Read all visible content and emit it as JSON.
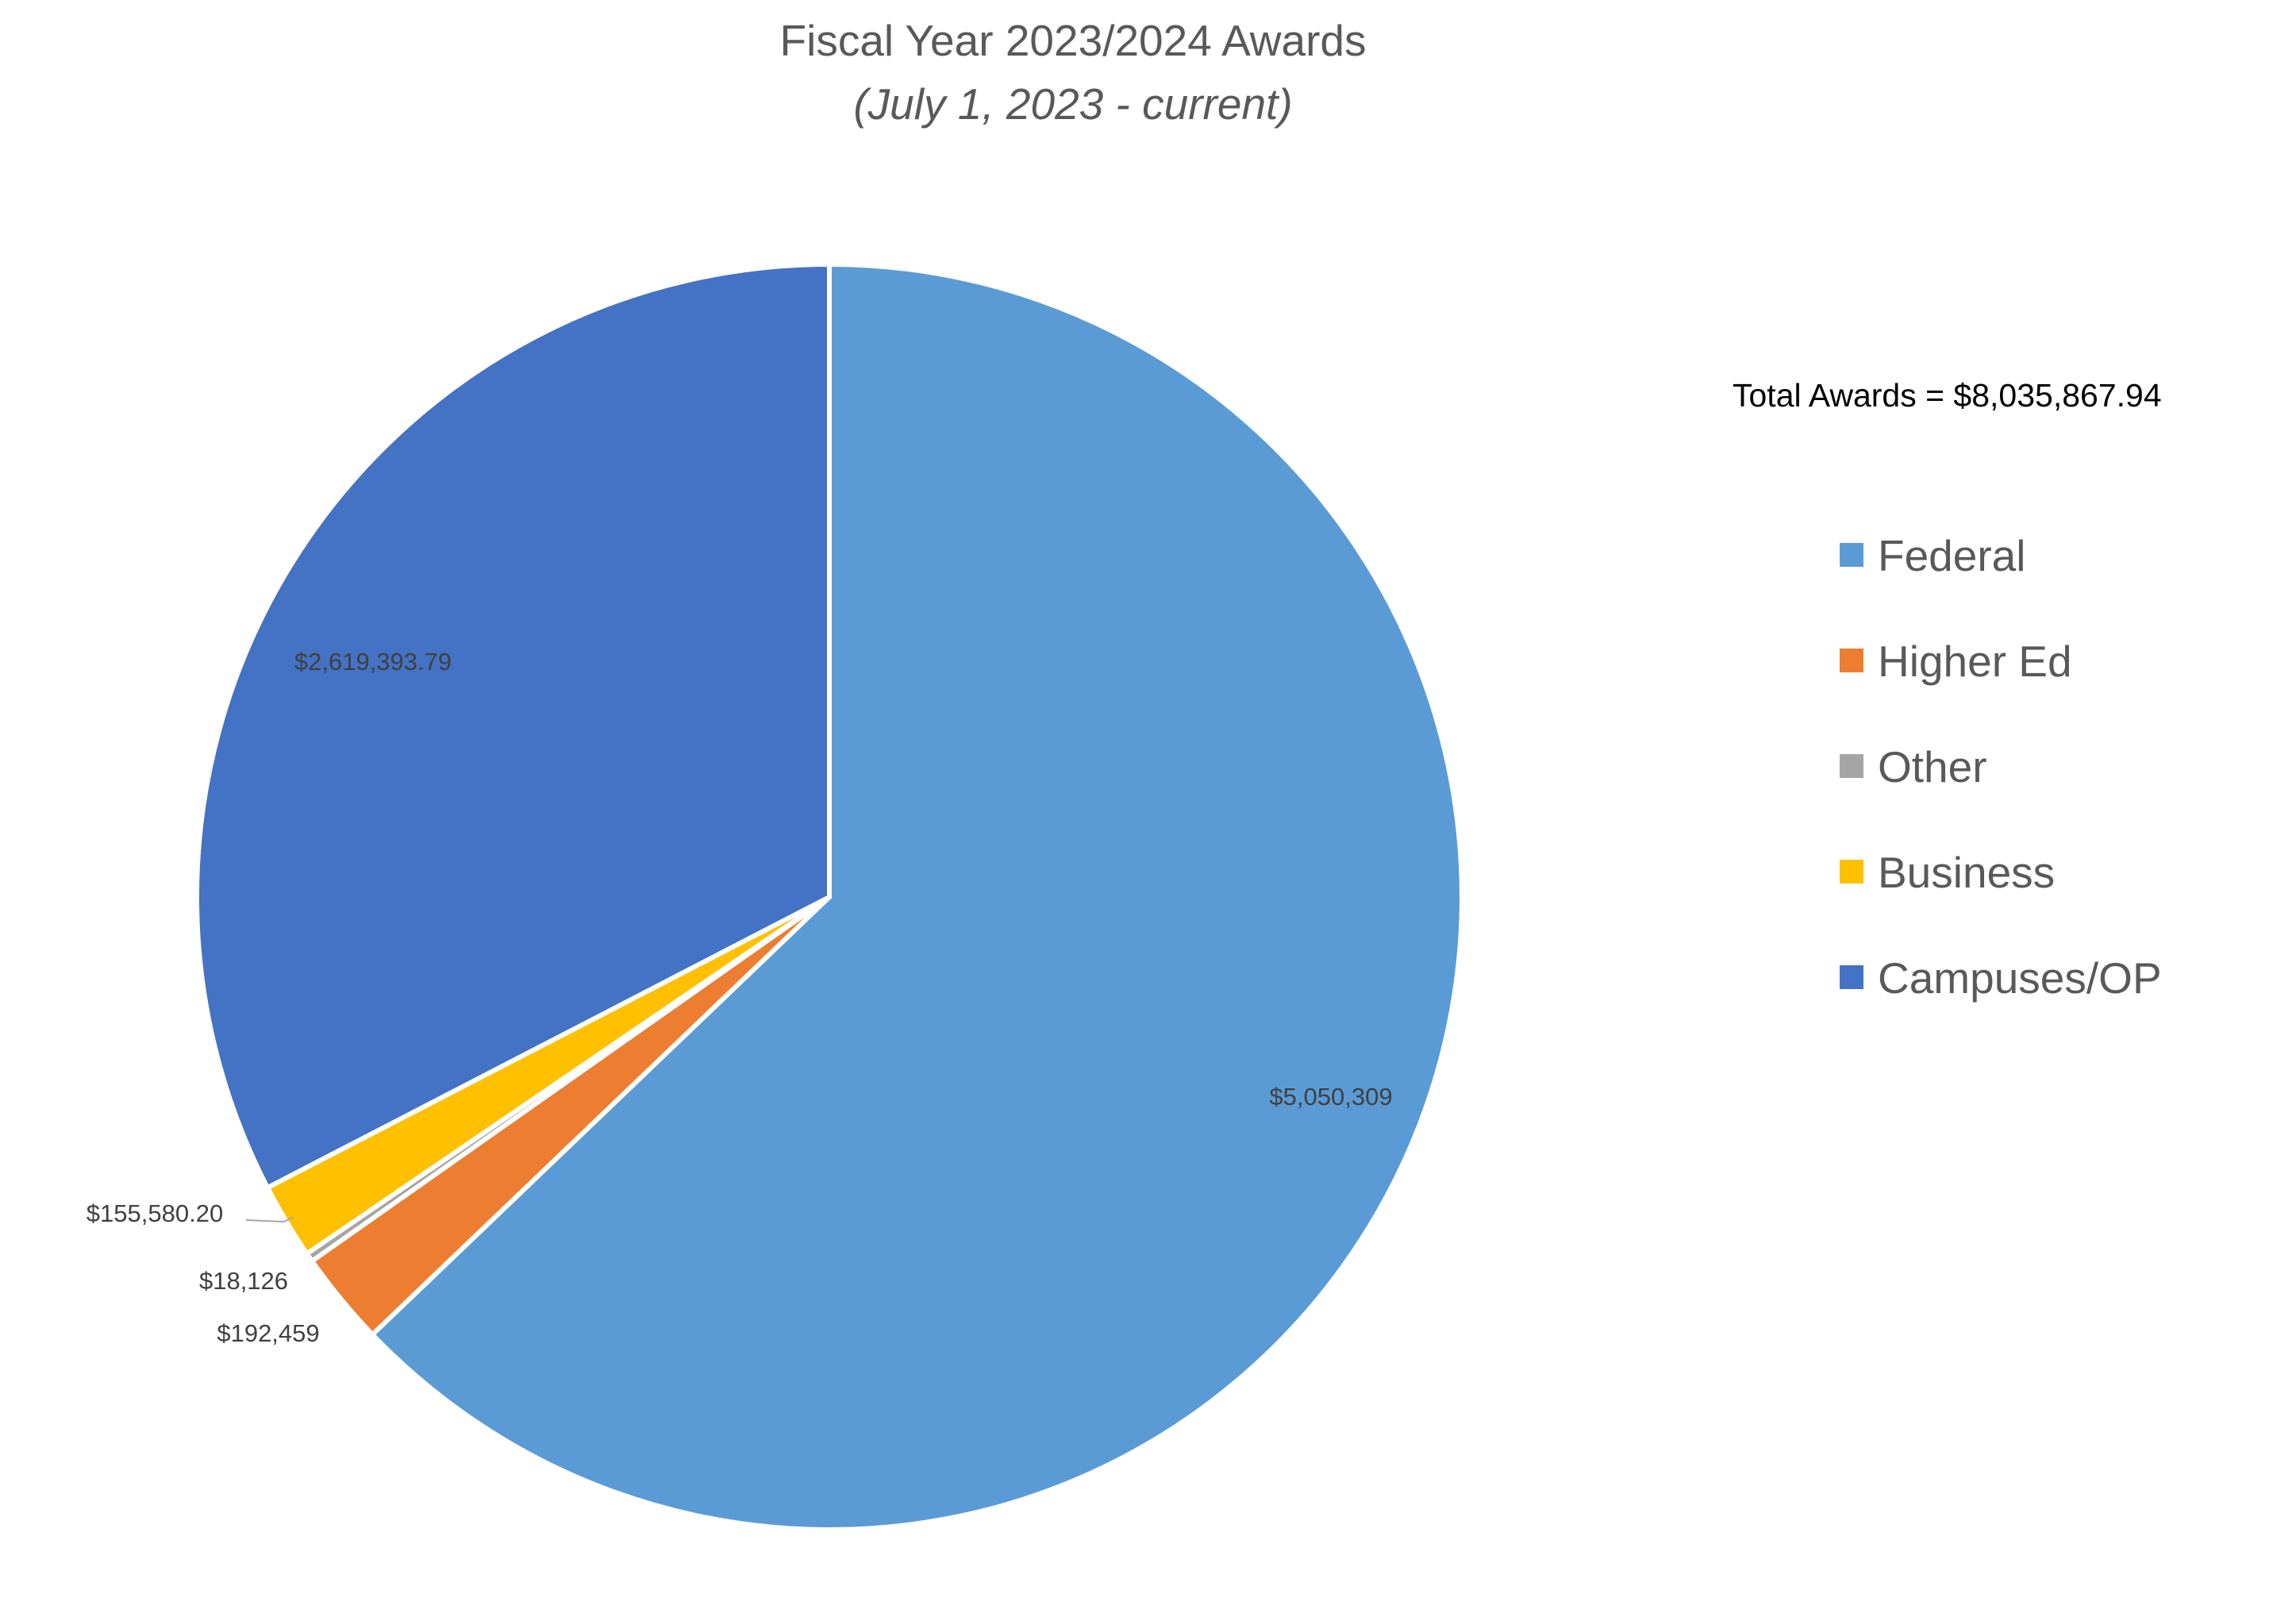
{
  "chart_data": {
    "type": "pie",
    "title": "Fiscal Year 2023/2024 Awards",
    "subtitle": "(July 1, 2023 - current)",
    "annotation": "Total Awards = $8,035,867.94",
    "legend_position": "right",
    "start_angle_deg": 0,
    "direction": "clockwise",
    "slices": [
      {
        "name": "Federal",
        "value": 5050309,
        "label": "$5,050,309",
        "color": "#5B9BD5"
      },
      {
        "name": "Higher Ed",
        "value": 192459,
        "label": "$192,459",
        "color": "#ED7D31"
      },
      {
        "name": "Other",
        "value": 18126,
        "label": "$18,126",
        "color": "#A5A5A5"
      },
      {
        "name": "Business",
        "value": 155580.2,
        "label": "$155,580.20",
        "color": "#FFC000"
      },
      {
        "name": "Campuses/OP",
        "value": 2619393.79,
        "label": "$2,619,393.79",
        "color": "#4472C4"
      }
    ]
  }
}
